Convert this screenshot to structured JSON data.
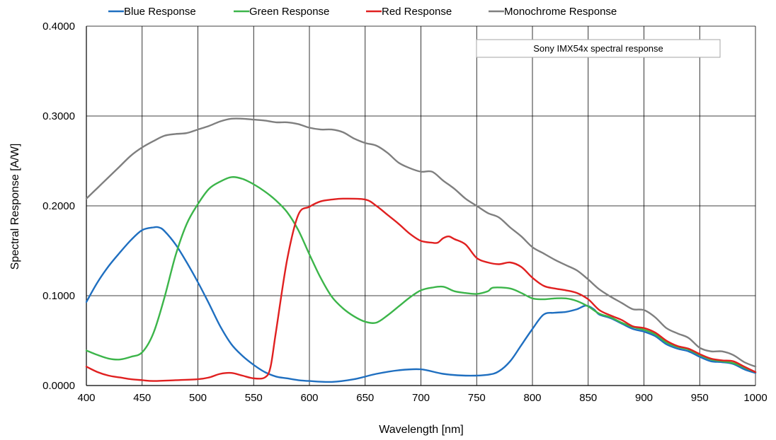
{
  "chart_data": {
    "type": "line",
    "annotation": "Sony IMX54x spectral response",
    "xlabel": "Wavelength [nm]",
    "ylabel": "Spectral Response [A/W]",
    "xlim": [
      400,
      1000
    ],
    "ylim": [
      0,
      0.4
    ],
    "xticks": [
      400,
      450,
      500,
      550,
      600,
      650,
      700,
      750,
      800,
      850,
      900,
      950,
      1000
    ],
    "yticks": [
      "0.0000",
      "0.1000",
      "0.2000",
      "0.3000",
      "0.4000"
    ],
    "grid": true,
    "legend_position": "top",
    "series": [
      {
        "name": "Blue Response",
        "color": "#1f6fc0",
        "points": [
          [
            400,
            0.093
          ],
          [
            410,
            0.115
          ],
          [
            420,
            0.133
          ],
          [
            430,
            0.148
          ],
          [
            440,
            0.162
          ],
          [
            450,
            0.173
          ],
          [
            460,
            0.176
          ],
          [
            465,
            0.176
          ],
          [
            470,
            0.172
          ],
          [
            480,
            0.157
          ],
          [
            490,
            0.137
          ],
          [
            500,
            0.115
          ],
          [
            510,
            0.091
          ],
          [
            520,
            0.066
          ],
          [
            530,
            0.046
          ],
          [
            540,
            0.033
          ],
          [
            550,
            0.023
          ],
          [
            560,
            0.015
          ],
          [
            570,
            0.01
          ],
          [
            580,
            0.008
          ],
          [
            590,
            0.006
          ],
          [
            600,
            0.005
          ],
          [
            620,
            0.004
          ],
          [
            640,
            0.007
          ],
          [
            660,
            0.013
          ],
          [
            680,
            0.017
          ],
          [
            700,
            0.018
          ],
          [
            720,
            0.013
          ],
          [
            740,
            0.011
          ],
          [
            760,
            0.012
          ],
          [
            770,
            0.016
          ],
          [
            780,
            0.027
          ],
          [
            790,
            0.045
          ],
          [
            800,
            0.063
          ],
          [
            810,
            0.079
          ],
          [
            820,
            0.081
          ],
          [
            830,
            0.082
          ],
          [
            840,
            0.085
          ],
          [
            848,
            0.089
          ],
          [
            855,
            0.085
          ],
          [
            860,
            0.079
          ],
          [
            870,
            0.075
          ],
          [
            880,
            0.069
          ],
          [
            890,
            0.063
          ],
          [
            900,
            0.06
          ],
          [
            910,
            0.055
          ],
          [
            920,
            0.046
          ],
          [
            930,
            0.041
          ],
          [
            940,
            0.038
          ],
          [
            950,
            0.032
          ],
          [
            960,
            0.027
          ],
          [
            970,
            0.026
          ],
          [
            980,
            0.024
          ],
          [
            990,
            0.018
          ],
          [
            1000,
            0.014
          ]
        ]
      },
      {
        "name": "Green Response",
        "color": "#3cb54a",
        "points": [
          [
            400,
            0.039
          ],
          [
            410,
            0.034
          ],
          [
            420,
            0.03
          ],
          [
            430,
            0.029
          ],
          [
            440,
            0.032
          ],
          [
            450,
            0.037
          ],
          [
            460,
            0.058
          ],
          [
            470,
            0.098
          ],
          [
            480,
            0.145
          ],
          [
            490,
            0.18
          ],
          [
            500,
            0.202
          ],
          [
            510,
            0.219
          ],
          [
            520,
            0.227
          ],
          [
            530,
            0.232
          ],
          [
            540,
            0.23
          ],
          [
            550,
            0.224
          ],
          [
            560,
            0.216
          ],
          [
            570,
            0.206
          ],
          [
            580,
            0.193
          ],
          [
            590,
            0.173
          ],
          [
            600,
            0.146
          ],
          [
            610,
            0.12
          ],
          [
            620,
            0.099
          ],
          [
            630,
            0.086
          ],
          [
            640,
            0.077
          ],
          [
            650,
            0.071
          ],
          [
            660,
            0.07
          ],
          [
            670,
            0.078
          ],
          [
            680,
            0.088
          ],
          [
            690,
            0.098
          ],
          [
            700,
            0.106
          ],
          [
            710,
            0.109
          ],
          [
            720,
            0.11
          ],
          [
            730,
            0.105
          ],
          [
            740,
            0.103
          ],
          [
            750,
            0.102
          ],
          [
            760,
            0.105
          ],
          [
            765,
            0.109
          ],
          [
            780,
            0.108
          ],
          [
            790,
            0.103
          ],
          [
            800,
            0.097
          ],
          [
            810,
            0.096
          ],
          [
            820,
            0.097
          ],
          [
            830,
            0.097
          ],
          [
            840,
            0.094
          ],
          [
            850,
            0.088
          ],
          [
            860,
            0.08
          ],
          [
            870,
            0.076
          ],
          [
            880,
            0.07
          ],
          [
            890,
            0.065
          ],
          [
            900,
            0.062
          ],
          [
            910,
            0.057
          ],
          [
            920,
            0.048
          ],
          [
            930,
            0.043
          ],
          [
            940,
            0.04
          ],
          [
            950,
            0.034
          ],
          [
            960,
            0.029
          ],
          [
            970,
            0.027
          ],
          [
            980,
            0.025
          ],
          [
            990,
            0.02
          ],
          [
            1000,
            0.015
          ]
        ]
      },
      {
        "name": "Red Response",
        "color": "#e02020",
        "points": [
          [
            400,
            0.021
          ],
          [
            410,
            0.015
          ],
          [
            420,
            0.011
          ],
          [
            430,
            0.009
          ],
          [
            440,
            0.007
          ],
          [
            450,
            0.006
          ],
          [
            460,
            0.005
          ],
          [
            480,
            0.006
          ],
          [
            500,
            0.007
          ],
          [
            510,
            0.009
          ],
          [
            520,
            0.013
          ],
          [
            530,
            0.014
          ],
          [
            540,
            0.011
          ],
          [
            550,
            0.008
          ],
          [
            560,
            0.009
          ],
          [
            565,
            0.02
          ],
          [
            570,
            0.06
          ],
          [
            580,
            0.14
          ],
          [
            590,
            0.19
          ],
          [
            600,
            0.199
          ],
          [
            610,
            0.205
          ],
          [
            620,
            0.207
          ],
          [
            630,
            0.208
          ],
          [
            650,
            0.207
          ],
          [
            660,
            0.2
          ],
          [
            670,
            0.19
          ],
          [
            680,
            0.18
          ],
          [
            690,
            0.169
          ],
          [
            700,
            0.161
          ],
          [
            710,
            0.159
          ],
          [
            715,
            0.159
          ],
          [
            720,
            0.164
          ],
          [
            725,
            0.166
          ],
          [
            730,
            0.163
          ],
          [
            740,
            0.157
          ],
          [
            750,
            0.142
          ],
          [
            760,
            0.137
          ],
          [
            770,
            0.135
          ],
          [
            780,
            0.137
          ],
          [
            790,
            0.132
          ],
          [
            800,
            0.12
          ],
          [
            810,
            0.111
          ],
          [
            820,
            0.108
          ],
          [
            830,
            0.106
          ],
          [
            840,
            0.103
          ],
          [
            850,
            0.096
          ],
          [
            860,
            0.084
          ],
          [
            870,
            0.078
          ],
          [
            880,
            0.073
          ],
          [
            890,
            0.066
          ],
          [
            900,
            0.064
          ],
          [
            910,
            0.059
          ],
          [
            920,
            0.05
          ],
          [
            930,
            0.044
          ],
          [
            940,
            0.041
          ],
          [
            950,
            0.035
          ],
          [
            960,
            0.03
          ],
          [
            970,
            0.028
          ],
          [
            980,
            0.027
          ],
          [
            990,
            0.021
          ],
          [
            1000,
            0.015
          ]
        ]
      },
      {
        "name": "Monochrome Response",
        "color": "#7f7f7f",
        "points": [
          [
            400,
            0.208
          ],
          [
            410,
            0.22
          ],
          [
            420,
            0.232
          ],
          [
            430,
            0.244
          ],
          [
            440,
            0.256
          ],
          [
            450,
            0.265
          ],
          [
            460,
            0.272
          ],
          [
            470,
            0.278
          ],
          [
            480,
            0.28
          ],
          [
            490,
            0.281
          ],
          [
            500,
            0.285
          ],
          [
            510,
            0.289
          ],
          [
            520,
            0.294
          ],
          [
            530,
            0.297
          ],
          [
            540,
            0.297
          ],
          [
            550,
            0.296
          ],
          [
            560,
            0.295
          ],
          [
            570,
            0.293
          ],
          [
            580,
            0.293
          ],
          [
            590,
            0.291
          ],
          [
            600,
            0.287
          ],
          [
            610,
            0.285
          ],
          [
            620,
            0.285
          ],
          [
            630,
            0.282
          ],
          [
            640,
            0.275
          ],
          [
            650,
            0.27
          ],
          [
            660,
            0.267
          ],
          [
            670,
            0.259
          ],
          [
            680,
            0.248
          ],
          [
            690,
            0.242
          ],
          [
            700,
            0.238
          ],
          [
            710,
            0.238
          ],
          [
            720,
            0.228
          ],
          [
            730,
            0.219
          ],
          [
            740,
            0.208
          ],
          [
            750,
            0.2
          ],
          [
            760,
            0.192
          ],
          [
            770,
            0.187
          ],
          [
            780,
            0.176
          ],
          [
            790,
            0.166
          ],
          [
            800,
            0.154
          ],
          [
            810,
            0.147
          ],
          [
            820,
            0.14
          ],
          [
            830,
            0.134
          ],
          [
            840,
            0.128
          ],
          [
            850,
            0.118
          ],
          [
            860,
            0.107
          ],
          [
            870,
            0.099
          ],
          [
            880,
            0.092
          ],
          [
            890,
            0.085
          ],
          [
            900,
            0.084
          ],
          [
            910,
            0.076
          ],
          [
            920,
            0.064
          ],
          [
            930,
            0.058
          ],
          [
            940,
            0.053
          ],
          [
            950,
            0.042
          ],
          [
            960,
            0.038
          ],
          [
            970,
            0.038
          ],
          [
            980,
            0.034
          ],
          [
            990,
            0.026
          ],
          [
            1000,
            0.021
          ]
        ]
      }
    ]
  }
}
